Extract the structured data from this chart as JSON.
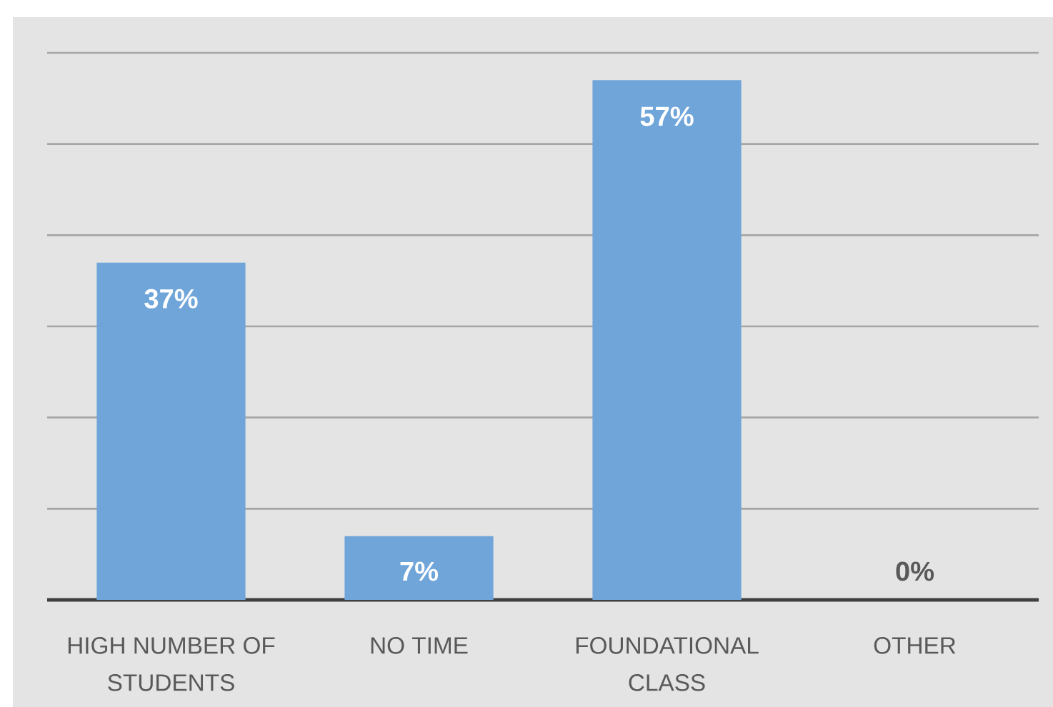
{
  "chart_data": {
    "type": "bar",
    "categories": [
      "HIGH NUMBER OF STUDENTS",
      "NO TIME",
      "FOUNDATIONAL CLASS",
      "OTHER"
    ],
    "values": [
      37,
      7,
      57,
      0
    ],
    "color": "#6fa5d9",
    "value_labels": [
      "37%",
      "7%",
      "57%",
      "0%"
    ],
    "ylim": [
      0,
      60
    ],
    "yticks": [
      {
        "value": 0,
        "label": null
      },
      {
        "value": 10,
        "label": null
      },
      {
        "value": 20,
        "label": null
      },
      {
        "value": 30,
        "label": null
      },
      {
        "value": 40,
        "label": null
      },
      {
        "value": 50,
        "label": null
      },
      {
        "value": 60,
        "label": null
      }
    ],
    "grid": "y",
    "tick_labels": "x"
  }
}
